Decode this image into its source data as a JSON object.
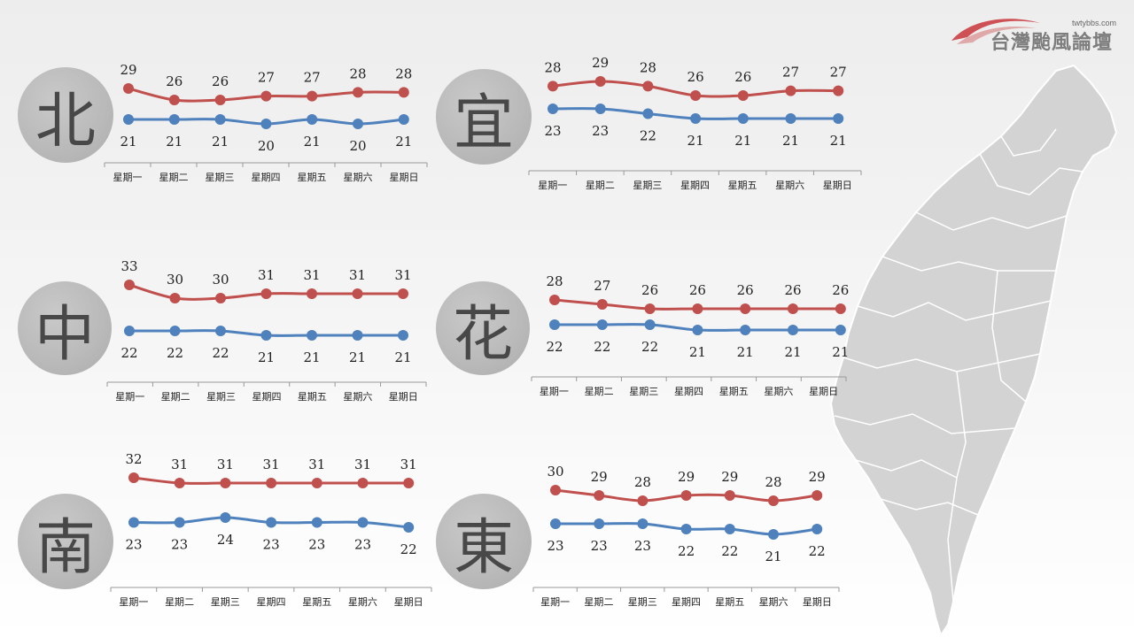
{
  "logo": {
    "url": "twtybbs.com",
    "name": "台灣颱風論壇"
  },
  "days": [
    "星期一",
    "星期二",
    "星期三",
    "星期四",
    "星期五",
    "星期六",
    "星期日"
  ],
  "colors": {
    "high": "#c0504d",
    "low": "#4f81bd"
  },
  "chart_data": [
    {
      "type": "line",
      "region": "北",
      "categories": [
        "星期一",
        "星期二",
        "星期三",
        "星期四",
        "星期五",
        "星期六",
        "星期日"
      ],
      "series": [
        {
          "key": "high",
          "values": [
            29,
            26,
            26,
            27,
            27,
            28,
            28
          ]
        },
        {
          "key": "low",
          "values": [
            21,
            21,
            21,
            20,
            21,
            20,
            21
          ]
        }
      ]
    },
    {
      "type": "line",
      "region": "宜",
      "categories": [
        "星期一",
        "星期二",
        "星期三",
        "星期四",
        "星期五",
        "星期六",
        "星期日"
      ],
      "series": [
        {
          "key": "high",
          "values": [
            28,
            29,
            28,
            26,
            26,
            27,
            27
          ]
        },
        {
          "key": "low",
          "values": [
            23,
            23,
            22,
            21,
            21,
            21,
            21
          ]
        }
      ]
    },
    {
      "type": "line",
      "region": "中",
      "categories": [
        "星期一",
        "星期二",
        "星期三",
        "星期四",
        "星期五",
        "星期六",
        "星期日"
      ],
      "series": [
        {
          "key": "high",
          "values": [
            33,
            30,
            30,
            31,
            31,
            31,
            31
          ]
        },
        {
          "key": "low",
          "values": [
            22,
            22,
            22,
            21,
            21,
            21,
            21
          ]
        }
      ]
    },
    {
      "type": "line",
      "region": "花",
      "categories": [
        "星期一",
        "星期二",
        "星期三",
        "星期四",
        "星期五",
        "星期六",
        "星期日"
      ],
      "series": [
        {
          "key": "high",
          "values": [
            28,
            27,
            26,
            26,
            26,
            26,
            26
          ]
        },
        {
          "key": "low",
          "values": [
            22,
            22,
            22,
            21,
            21,
            21,
            21
          ]
        }
      ]
    },
    {
      "type": "line",
      "region": "南",
      "categories": [
        "星期一",
        "星期二",
        "星期三",
        "星期四",
        "星期五",
        "星期六",
        "星期日"
      ],
      "series": [
        {
          "key": "high",
          "values": [
            32,
            31,
            31,
            31,
            31,
            31,
            31
          ]
        },
        {
          "key": "low",
          "values": [
            23,
            23,
            24,
            23,
            23,
            23,
            22
          ]
        }
      ]
    },
    {
      "type": "line",
      "region": "東",
      "categories": [
        "星期一",
        "星期二",
        "星期三",
        "星期四",
        "星期五",
        "星期六",
        "星期日"
      ],
      "series": [
        {
          "key": "high",
          "values": [
            30,
            29,
            28,
            29,
            29,
            28,
            29
          ]
        },
        {
          "key": "low",
          "values": [
            23,
            23,
            23,
            22,
            22,
            21,
            22
          ]
        }
      ]
    }
  ]
}
